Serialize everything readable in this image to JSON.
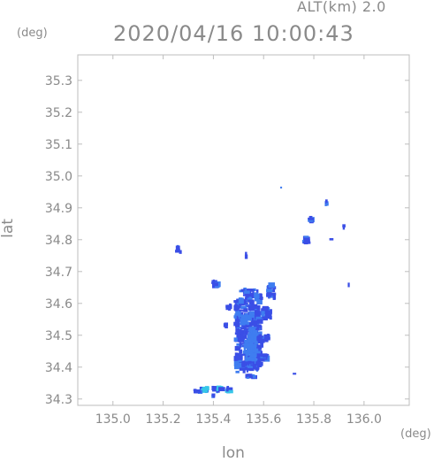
{
  "header": {
    "altitude": "ALT(km) 2.0",
    "timestamp": "2020/04/16 10:00:43"
  },
  "units": {
    "y": "(deg)",
    "x": "(deg)"
  },
  "colors": {
    "axis": "#bdbdbd",
    "text": "#8a8a8a",
    "echo_weak": "#3a4ee6",
    "echo_mid": "#3f7df0",
    "echo_strong": "#36c6e8"
  },
  "chart_data": {
    "type": "heatmap",
    "title": "2020/04/16 10:00:43",
    "subtitle": "ALT(km) 2.0",
    "xlabel": "lon",
    "ylabel": "lat",
    "xlim": [
      134.86,
      136.18
    ],
    "ylim": [
      34.28,
      35.38
    ],
    "xticks": [
      135.0,
      135.2,
      135.4,
      135.6,
      135.8,
      136.0
    ],
    "yticks": [
      34.3,
      34.4,
      34.5,
      34.6,
      34.7,
      34.8,
      34.9,
      35.0,
      35.1,
      35.2,
      35.3
    ],
    "grid": false,
    "echoes": [
      {
        "lon": 135.54,
        "lat": 34.5,
        "w": 0.12,
        "h": 0.24,
        "level": 1
      },
      {
        "lon": 135.55,
        "lat": 34.47,
        "w": 0.06,
        "h": 0.12,
        "level": 2
      },
      {
        "lon": 135.53,
        "lat": 34.55,
        "w": 0.05,
        "h": 0.04,
        "level": 2
      },
      {
        "lon": 135.55,
        "lat": 34.63,
        "w": 0.1,
        "h": 0.04,
        "level": 1
      },
      {
        "lon": 135.63,
        "lat": 34.64,
        "w": 0.04,
        "h": 0.06,
        "level": 1
      },
      {
        "lon": 135.61,
        "lat": 34.57,
        "w": 0.05,
        "h": 0.05,
        "level": 1
      },
      {
        "lon": 135.6,
        "lat": 34.49,
        "w": 0.06,
        "h": 0.03,
        "level": 1
      },
      {
        "lon": 135.6,
        "lat": 34.43,
        "w": 0.05,
        "h": 0.03,
        "level": 1
      },
      {
        "lon": 135.41,
        "lat": 34.66,
        "w": 0.04,
        "h": 0.03,
        "level": 1
      },
      {
        "lon": 135.46,
        "lat": 34.59,
        "w": 0.03,
        "h": 0.03,
        "level": 1
      },
      {
        "lon": 135.45,
        "lat": 34.53,
        "w": 0.02,
        "h": 0.02,
        "level": 1
      },
      {
        "lon": 135.55,
        "lat": 34.41,
        "w": 0.1,
        "h": 0.025,
        "level": 1
      },
      {
        "lon": 135.55,
        "lat": 34.37,
        "w": 0.05,
        "h": 0.02,
        "level": 1
      },
      {
        "lon": 135.41,
        "lat": 34.33,
        "w": 0.16,
        "h": 0.025,
        "level": 3
      },
      {
        "lon": 135.35,
        "lat": 34.325,
        "w": 0.06,
        "h": 0.02,
        "level": 1
      },
      {
        "lon": 135.4,
        "lat": 34.31,
        "w": 0.03,
        "h": 0.015,
        "level": 1
      },
      {
        "lon": 135.26,
        "lat": 34.77,
        "w": 0.03,
        "h": 0.03,
        "level": 1
      },
      {
        "lon": 135.72,
        "lat": 34.38,
        "w": 0.02,
        "h": 0.01,
        "level": 1
      },
      {
        "lon": 135.67,
        "lat": 34.96,
        "w": 0.01,
        "h": 0.02,
        "level": 1
      },
      {
        "lon": 135.79,
        "lat": 34.86,
        "w": 0.03,
        "h": 0.03,
        "level": 1
      },
      {
        "lon": 135.85,
        "lat": 34.92,
        "w": 0.02,
        "h": 0.03,
        "level": 1
      },
      {
        "lon": 135.77,
        "lat": 34.8,
        "w": 0.04,
        "h": 0.03,
        "level": 1
      },
      {
        "lon": 135.87,
        "lat": 34.8,
        "w": 0.02,
        "h": 0.01,
        "level": 1
      },
      {
        "lon": 135.92,
        "lat": 34.84,
        "w": 0.015,
        "h": 0.02,
        "level": 1
      },
      {
        "lon": 135.94,
        "lat": 34.66,
        "w": 0.01,
        "h": 0.02,
        "level": 1
      },
      {
        "lon": 135.53,
        "lat": 34.75,
        "w": 0.01,
        "h": 0.03,
        "level": 1
      }
    ]
  }
}
